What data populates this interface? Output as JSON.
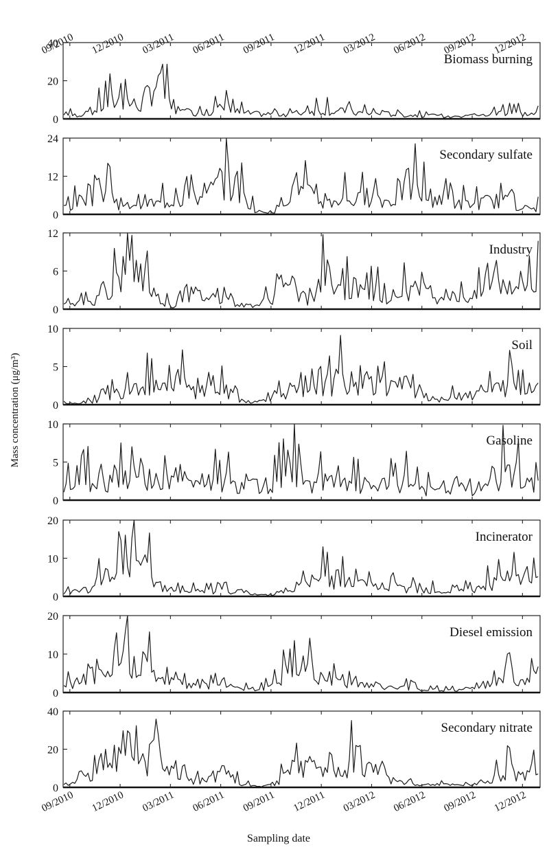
{
  "figure": {
    "y_axis_label": "Mass concentration (μg/m³)",
    "x_axis_label": "Sampling date",
    "date_ticks": [
      "09/2010",
      "12/2010",
      "03/2011",
      "06/2011",
      "09/2011",
      "12/2011",
      "03/2012",
      "06/2012",
      "09/2012",
      "12/2012"
    ]
  },
  "chart_data": [
    {
      "type": "line",
      "series_name": "Biomass burning",
      "ylim": [
        0,
        40
      ],
      "yticks": [
        0,
        20,
        40
      ],
      "x": [
        "2010-09",
        "2010-10",
        "2010-11",
        "2010-12",
        "2011-01",
        "2011-02",
        "2011-03",
        "2011-04",
        "2011-05",
        "2011-06",
        "2011-07",
        "2011-08",
        "2011-09",
        "2011-10",
        "2011-11",
        "2011-12",
        "2012-01",
        "2012-02",
        "2012-03",
        "2012-04",
        "2012-05",
        "2012-06",
        "2012-07",
        "2012-08",
        "2012-09",
        "2012-10",
        "2012-11",
        "2012-12"
      ],
      "values": [
        3,
        4,
        12,
        16,
        10,
        31,
        6,
        5,
        5,
        9,
        5,
        4,
        4,
        4,
        6,
        7,
        6,
        5,
        4,
        4,
        3,
        3,
        2,
        1,
        2,
        4,
        6,
        4
      ]
    },
    {
      "type": "line",
      "series_name": "Secondary sulfate",
      "ylim": [
        0,
        24
      ],
      "yticks": [
        0,
        12,
        24
      ],
      "x": [
        "2010-09",
        "2010-10",
        "2010-11",
        "2010-12",
        "2011-01",
        "2011-02",
        "2011-03",
        "2011-04",
        "2011-05",
        "2011-06",
        "2011-07",
        "2011-08",
        "2011-09",
        "2011-10",
        "2011-11",
        "2011-12",
        "2012-01",
        "2012-02",
        "2012-03",
        "2012-04",
        "2012-05",
        "2012-06",
        "2012-07",
        "2012-08",
        "2012-09",
        "2012-10",
        "2012-11",
        "2012-12"
      ],
      "values": [
        4,
        10,
        12,
        3,
        7,
        5,
        7,
        8,
        9,
        18,
        10,
        1,
        1,
        12,
        10,
        5,
        8,
        7,
        9,
        6,
        15,
        9,
        8,
        5,
        5,
        7,
        6,
        3
      ]
    },
    {
      "type": "line",
      "series_name": "Industry",
      "ylim": [
        0,
        12
      ],
      "yticks": [
        0,
        6,
        12
      ],
      "x": [
        "2010-09",
        "2010-10",
        "2010-11",
        "2010-12",
        "2011-01",
        "2011-02",
        "2011-03",
        "2011-04",
        "2011-05",
        "2011-06",
        "2011-07",
        "2011-08",
        "2011-09",
        "2011-10",
        "2011-11",
        "2011-12",
        "2012-01",
        "2012-02",
        "2012-03",
        "2012-04",
        "2012-05",
        "2012-06",
        "2012-07",
        "2012-08",
        "2012-09",
        "2012-10",
        "2012-11",
        "2012-12"
      ],
      "values": [
        1,
        2,
        3,
        9,
        10,
        3,
        0.5,
        4,
        3,
        3,
        1,
        1,
        3,
        6,
        1,
        7,
        5,
        4,
        4,
        3,
        5,
        4,
        3,
        3,
        3,
        5,
        7,
        6
      ]
    },
    {
      "type": "line",
      "series_name": "Soil",
      "ylim": [
        0,
        10
      ],
      "yticks": [
        0,
        5,
        10
      ],
      "x": [
        "2010-09",
        "2010-10",
        "2010-11",
        "2010-12",
        "2011-01",
        "2011-02",
        "2011-03",
        "2011-04",
        "2011-05",
        "2011-06",
        "2011-07",
        "2011-08",
        "2011-09",
        "2011-10",
        "2011-11",
        "2011-12",
        "2012-01",
        "2012-02",
        "2012-03",
        "2012-04",
        "2012-05",
        "2012-06",
        "2012-07",
        "2012-08",
        "2012-09",
        "2012-10",
        "2012-11",
        "2012-12"
      ],
      "values": [
        0.3,
        0.5,
        1.5,
        3,
        5,
        3,
        6,
        3,
        3,
        3,
        1,
        0.5,
        2,
        3,
        2,
        4,
        5,
        4,
        4,
        4,
        4,
        2,
        1,
        1.5,
        1.5,
        3,
        4,
        2.5
      ]
    },
    {
      "type": "line",
      "series_name": "Gasoline",
      "ylim": [
        0,
        10
      ],
      "yticks": [
        0,
        5,
        10
      ],
      "x": [
        "2010-09",
        "2010-10",
        "2010-11",
        "2010-12",
        "2011-01",
        "2011-02",
        "2011-03",
        "2011-04",
        "2011-05",
        "2011-06",
        "2011-07",
        "2011-08",
        "2011-09",
        "2011-10",
        "2011-11",
        "2011-12",
        "2012-01",
        "2012-02",
        "2012-03",
        "2012-04",
        "2012-05",
        "2012-06",
        "2012-07",
        "2012-08",
        "2012-09",
        "2012-10",
        "2012-11",
        "2012-12"
      ],
      "values": [
        3,
        4,
        4,
        5,
        6,
        4,
        3.5,
        4,
        4,
        4,
        2,
        3,
        3,
        7.5,
        3,
        4,
        3,
        3,
        3,
        3,
        4,
        2,
        2,
        2,
        2,
        4,
        6,
        3
      ]
    },
    {
      "type": "line",
      "series_name": "Incinerator",
      "ylim": [
        0,
        20
      ],
      "yticks": [
        0,
        10,
        20
      ],
      "x": [
        "2010-09",
        "2010-10",
        "2010-11",
        "2010-12",
        "2011-01",
        "2011-02",
        "2011-03",
        "2011-04",
        "2011-05",
        "2011-06",
        "2011-07",
        "2011-08",
        "2011-09",
        "2011-10",
        "2011-11",
        "2011-12",
        "2012-01",
        "2012-02",
        "2012-03",
        "2012-04",
        "2012-05",
        "2012-06",
        "2012-07",
        "2012-08",
        "2012-09",
        "2012-10",
        "2012-11",
        "2012-12"
      ],
      "values": [
        2,
        3,
        8,
        17,
        15,
        5,
        2,
        2,
        2,
        2,
        2,
        0.5,
        0.5,
        3,
        5,
        8,
        6,
        5,
        4,
        4,
        3,
        3,
        2,
        2,
        3,
        5,
        7,
        8
      ]
    },
    {
      "type": "line",
      "series_name": "Diesel emission",
      "ylim": [
        0,
        20
      ],
      "yticks": [
        0,
        10,
        20
      ],
      "x": [
        "2010-09",
        "2010-10",
        "2010-11",
        "2010-12",
        "2011-01",
        "2011-02",
        "2011-03",
        "2011-04",
        "2011-05",
        "2011-06",
        "2011-07",
        "2011-08",
        "2011-09",
        "2011-10",
        "2011-11",
        "2011-12",
        "2012-01",
        "2012-02",
        "2012-03",
        "2012-04",
        "2012-05",
        "2012-06",
        "2012-07",
        "2012-08",
        "2012-09",
        "2012-10",
        "2012-11",
        "2012-12"
      ],
      "values": [
        3,
        8,
        5,
        12,
        14,
        6,
        4,
        3,
        3,
        4,
        2,
        1,
        3,
        8,
        12,
        6,
        4,
        3,
        3,
        2,
        2,
        1,
        1,
        1,
        2,
        4,
        6,
        5
      ]
    },
    {
      "type": "line",
      "series_name": "Secondary nitrate",
      "ylim": [
        0,
        40
      ],
      "yticks": [
        0,
        20,
        40
      ],
      "x": [
        "2010-09",
        "2010-10",
        "2010-11",
        "2010-12",
        "2011-01",
        "2011-02",
        "2011-03",
        "2011-04",
        "2011-05",
        "2011-06",
        "2011-07",
        "2011-08",
        "2011-09",
        "2011-10",
        "2011-11",
        "2011-12",
        "2012-01",
        "2012-02",
        "2012-03",
        "2012-04",
        "2012-05",
        "2012-06",
        "2012-07",
        "2012-08",
        "2012-09",
        "2012-10",
        "2012-11",
        "2012-12"
      ],
      "values": [
        3,
        8,
        12,
        23,
        18,
        30,
        10,
        5,
        6,
        12,
        3,
        0.5,
        2,
        12,
        18,
        15,
        14,
        28,
        10,
        5,
        4,
        2,
        2,
        2,
        3,
        8,
        12,
        14
      ]
    }
  ]
}
